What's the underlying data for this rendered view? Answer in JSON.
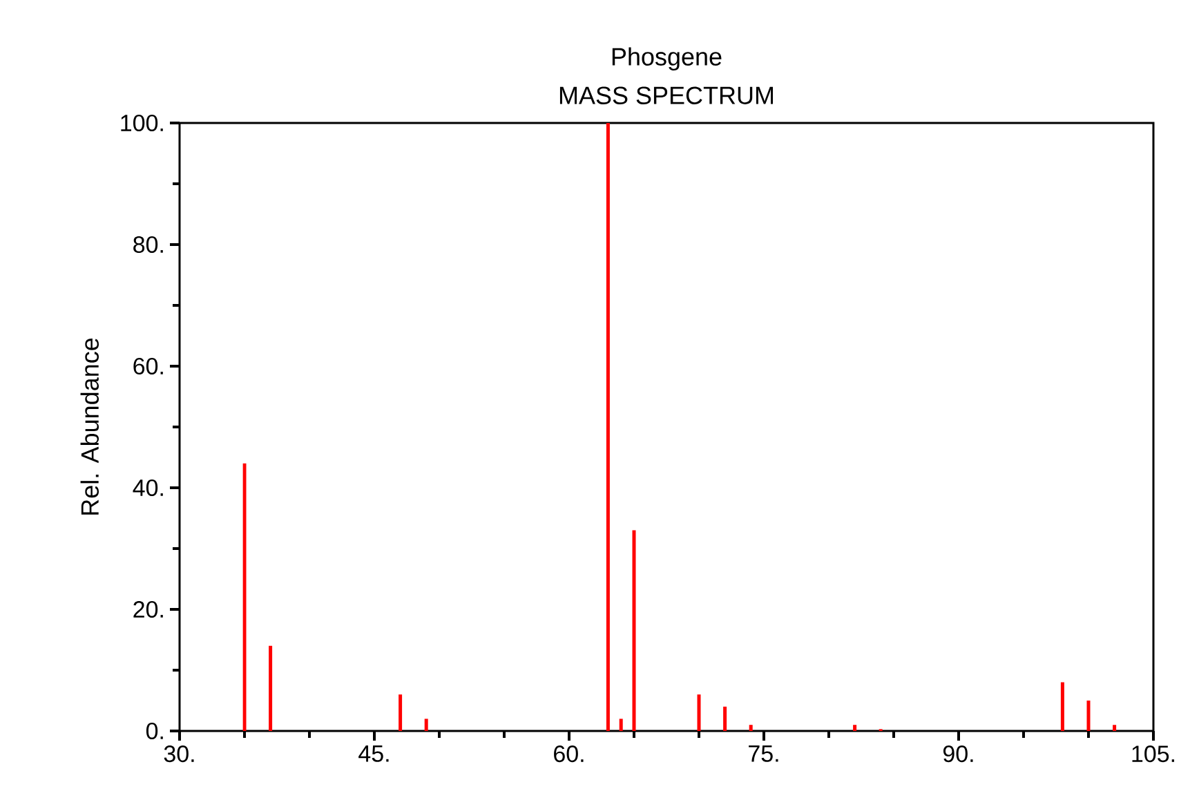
{
  "chart_data": {
    "type": "bar",
    "title": "Phosgene",
    "subtitle": "MASS SPECTRUM",
    "ylabel": "Rel. Abundance",
    "color": "#ff0000",
    "x": [
      35,
      37,
      47,
      49,
      63,
      64,
      65,
      70,
      72,
      74,
      82,
      84,
      98,
      100,
      102
    ],
    "values": [
      44,
      14,
      6,
      2,
      100,
      2,
      33,
      6,
      4,
      1,
      1,
      0.3,
      8,
      5,
      1
    ],
    "xlim": [
      30,
      105
    ],
    "ylim": [
      0,
      100
    ],
    "xticks": [
      {
        "value": 30,
        "label": "30."
      },
      {
        "value": 45,
        "label": "45."
      },
      {
        "value": 60,
        "label": "60."
      },
      {
        "value": 75,
        "label": "75."
      },
      {
        "value": 90,
        "label": "90."
      },
      {
        "value": 105,
        "label": "105."
      }
    ],
    "yticks": [
      {
        "value": 0,
        "label": "0."
      },
      {
        "value": 20,
        "label": "20."
      },
      {
        "value": 40,
        "label": "40."
      },
      {
        "value": 60,
        "label": "60."
      },
      {
        "value": 80,
        "label": "80."
      },
      {
        "value": 100,
        "label": "100."
      }
    ],
    "grid": false
  }
}
